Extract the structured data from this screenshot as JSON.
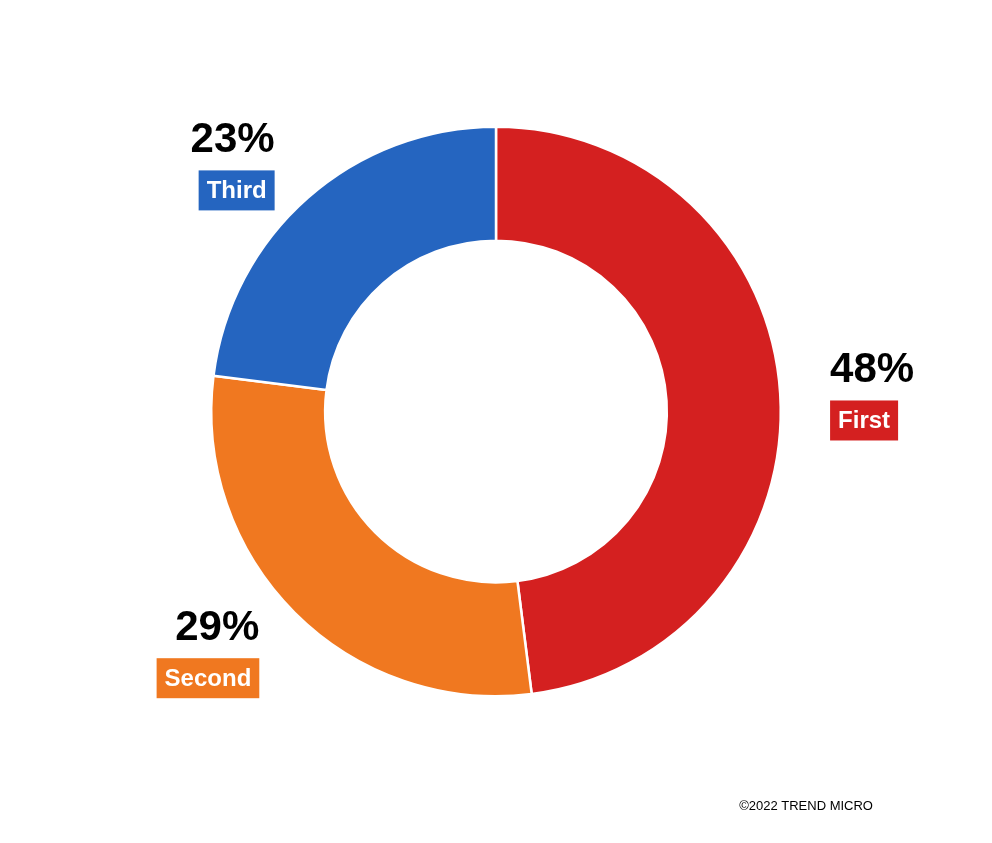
{
  "chart_data": {
    "type": "doughnut",
    "categories": [
      "First",
      "Second",
      "Third"
    ],
    "values": [
      48,
      29,
      23
    ],
    "value_labels": [
      "48%",
      "29%",
      "23%"
    ],
    "colors": [
      "#D42020",
      "#F07820",
      "#2565C0"
    ],
    "data_labels": true,
    "annotations": [
      "©2022 TREND MICRO"
    ]
  }
}
